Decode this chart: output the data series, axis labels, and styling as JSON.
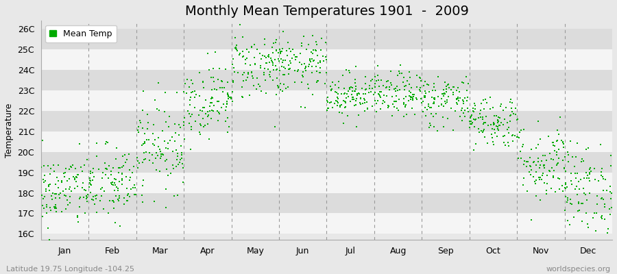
{
  "title": "Monthly Mean Temperatures 1901  -  2009",
  "ylabel": "Temperature",
  "xlabel_labels": [
    "Jan",
    "Feb",
    "Mar",
    "Apr",
    "May",
    "Jun",
    "Jul",
    "Aug",
    "Sep",
    "Oct",
    "Nov",
    "Dec"
  ],
  "ytick_labels": [
    "16C",
    "17C",
    "18C",
    "19C",
    "20C",
    "21C",
    "22C",
    "23C",
    "24C",
    "25C",
    "26C"
  ],
  "ytick_values": [
    16,
    17,
    18,
    19,
    20,
    21,
    22,
    23,
    24,
    25,
    26
  ],
  "ylim": [
    15.7,
    26.4
  ],
  "xlim": [
    0,
    12
  ],
  "dot_color": "#00aa00",
  "dot_size": 3,
  "background_color": "#e8e8e8",
  "band_colors": [
    "#f5f5f5",
    "#dcdcdc"
  ],
  "legend_label": "Mean Temp",
  "footer_left": "Latitude 19.75 Longitude -104.25",
  "footer_right": "worldspecies.org",
  "title_fontsize": 14,
  "axis_fontsize": 9,
  "footer_fontsize": 8,
  "monthly_means": [
    18.1,
    18.4,
    20.3,
    22.5,
    24.2,
    24.2,
    22.8,
    22.8,
    22.5,
    21.5,
    19.5,
    18.2
  ],
  "monthly_stds": [
    0.9,
    0.95,
    1.1,
    0.9,
    0.85,
    0.7,
    0.55,
    0.55,
    0.65,
    0.65,
    1.0,
    1.1
  ],
  "n_years": 109,
  "seed": 42
}
